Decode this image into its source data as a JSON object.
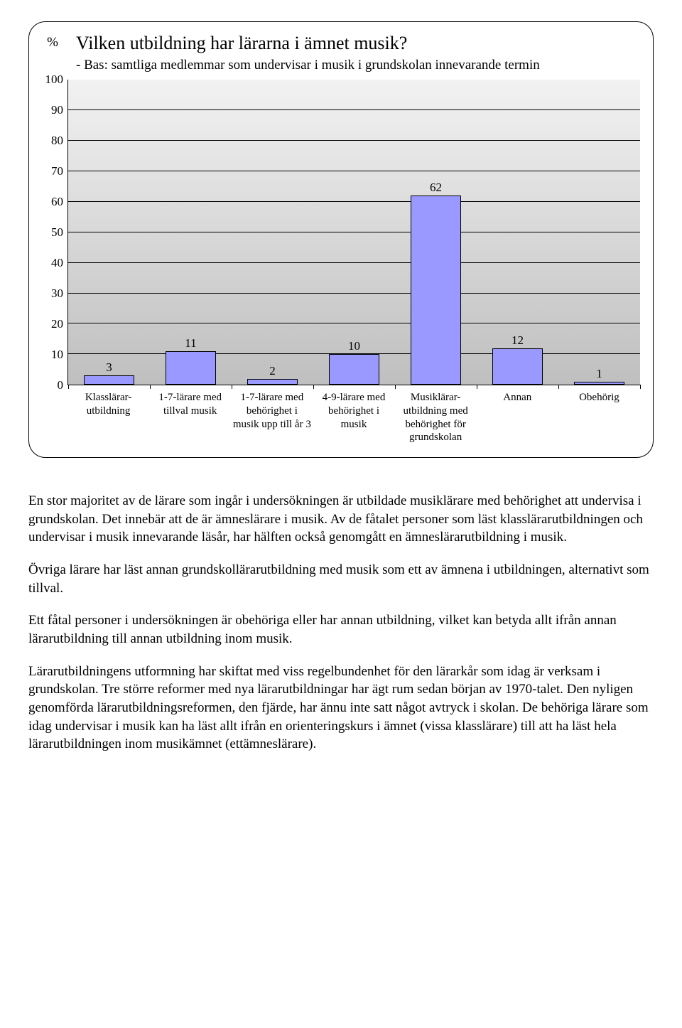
{
  "chart": {
    "type": "bar",
    "y_unit_label": "%",
    "title": "Vilken utbildning har lärarna i ämnet musik?",
    "subtitle": "- Bas: samtliga medlemmar som undervisar i musik i grundskolan innevarande termin",
    "title_fontsize": 26,
    "subtitle_fontsize": 19,
    "label_fontsize": 17,
    "ylim": [
      0,
      100
    ],
    "ytick_step": 10,
    "yticks": [
      100,
      90,
      80,
      70,
      60,
      50,
      40,
      30,
      20,
      10,
      0
    ],
    "categories": [
      "Klasslärar-utbildning",
      "1-7-lärare med tillval musik",
      "1-7-lärare med behörighet i musik upp till år 3",
      "4-9-lärare med behörighet i musik",
      "Musiklärar-utbildning med behörighet för grundskolan",
      "Annan",
      "Obehörig"
    ],
    "values": [
      3,
      11,
      2,
      10,
      62,
      12,
      1
    ],
    "bar_color": "#9999ff",
    "bar_border_color": "#000000",
    "grid_color": "#000000",
    "background_gradient_top": "#f2f2f2",
    "background_gradient_bottom": "#bfbfbf",
    "card_border_color": "#000000",
    "card_border_radius": 24,
    "bar_width": 0.62,
    "category_fontsize": 15
  },
  "paragraphs": {
    "p1": "En stor majoritet av de lärare som ingår i undersökningen är utbildade musiklärare med behörighet att undervisa i grundskolan. Det innebär att de är ämneslärare i musik. Av de fåtalet personer som läst klasslärarutbildningen och undervisar i musik innevarande läsår, har hälften också genomgått en ämneslärarutbildning i musik.",
    "p2": "Övriga lärare har läst annan grundskollärarutbildning med musik som ett av ämnena i utbildningen, alternativt som tillval.",
    "p3": "Ett fåtal personer i undersökningen är obehöriga eller har annan utbildning, vilket kan betyda allt ifrån annan lärarutbildning till annan utbildning inom musik.",
    "p4": "Lärarutbildningens utformning har skiftat med viss regelbundenhet för den lärarkår som idag är verksam i grundskolan. Tre större reformer med nya lärarutbildningar har ägt rum sedan början av 1970-talet. Den nyligen genomförda lärarutbildningsreformen, den fjärde, har ännu inte satt något avtryck i skolan. De behöriga lärare som idag undervisar i musik kan ha läst allt ifrån en orienteringskurs i ämnet (vissa klasslärare) till att ha läst hela lärarutbildningen inom musikämnet (ettämneslärare)."
  }
}
